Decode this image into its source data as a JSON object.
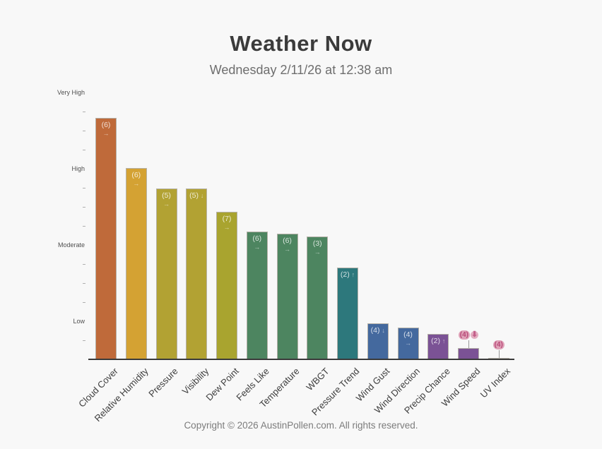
{
  "page": {
    "title": "Weather Now",
    "subtitle": "Wednesday 2/11/26 at 12:38 am",
    "footer": "Copyright © 2026 AustinPollen.com.  All rights reserved."
  },
  "colors": {
    "background": "#f8f8f8",
    "title_text": "#3b3b3b",
    "subtitle_text": "#6e6e6e",
    "footer_text": "#7c7c7c",
    "axis_line": "#3a3a3a",
    "tick": "#b0b0b0",
    "bar_border": "#b5b1a8",
    "bar_label_text": "rgba(255,255,255,0.78)",
    "outside_label_bubble": "#dfa2b8",
    "outside_label_text": "#b84a78",
    "stem": "#999999"
  },
  "chart_data": {
    "type": "bar",
    "title": "Weather Now",
    "subtitle": "Wednesday 2/11/26 at 12:38 am",
    "xlabel": "",
    "ylabel": "",
    "grid": false,
    "legend": "none",
    "y_axis": {
      "kind": "severity-scale",
      "labels": [
        {
          "text": "Very High",
          "value": 7
        },
        {
          "text": "High",
          "value": 5
        },
        {
          "text": "Moderate",
          "value": 3
        },
        {
          "text": "Low",
          "value": 1
        }
      ],
      "minor_tick_values": [
        0.5,
        1.5,
        2,
        2.5,
        3.5,
        4,
        4.5,
        5.5,
        6,
        6.5
      ],
      "range": [
        0,
        7.11
      ]
    },
    "categories": [
      "Cloud Cover",
      "Relative Humidity",
      "Pressure",
      "Visibility",
      "Dew Point",
      "Feels Like",
      "Temperature",
      "WBGT",
      "Pressure Trend",
      "Wind Gust",
      "Wind Direction",
      "Precip Chance",
      "Wind Speed",
      "UV Index"
    ],
    "bars": [
      {
        "category": "Cloud Cover",
        "score": 6,
        "trend": "steady",
        "trend_symbol": "→",
        "value": 6.33,
        "color": "#bf6a3a",
        "label_placement": "inside"
      },
      {
        "category": "Relative Humidity",
        "score": 6,
        "trend": "steady",
        "trend_symbol": "→",
        "value": 5.02,
        "color": "#d4a233",
        "label_placement": "inside"
      },
      {
        "category": "Pressure",
        "score": 5,
        "trend": "steady",
        "trend_symbol": "→",
        "value": 4.48,
        "color": "#b2a233",
        "label_placement": "inside"
      },
      {
        "category": "Visibility",
        "score": 5,
        "trend": "down",
        "trend_symbol": "↓",
        "value": 4.48,
        "color": "#b2a233",
        "label_placement": "inside"
      },
      {
        "category": "Dew Point",
        "score": 7,
        "trend": "steady",
        "trend_symbol": "→",
        "value": 3.87,
        "color": "#a9a42f",
        "label_placement": "inside"
      },
      {
        "category": "Feels Like",
        "score": 6,
        "trend": "steady",
        "trend_symbol": "→",
        "value": 3.35,
        "color": "#4d8560",
        "label_placement": "inside"
      },
      {
        "category": "Temperature",
        "score": 6,
        "trend": "steady",
        "trend_symbol": "→",
        "value": 3.3,
        "color": "#4d8560",
        "label_placement": "inside"
      },
      {
        "category": "WBGT",
        "score": 3,
        "trend": "steady",
        "trend_symbol": "→",
        "value": 3.22,
        "color": "#4d8560",
        "label_placement": "inside"
      },
      {
        "category": "Pressure Trend",
        "score": 2,
        "trend": "up",
        "trend_symbol": "↑",
        "value": 2.41,
        "color": "#2d787c",
        "label_placement": "inside"
      },
      {
        "category": "Wind Gust",
        "score": 4,
        "trend": "down",
        "trend_symbol": "↓",
        "value": 0.94,
        "color": "#44699e",
        "label_placement": "inside"
      },
      {
        "category": "Wind Direction",
        "score": 4,
        "trend": "steady",
        "trend_symbol": "→",
        "value": 0.83,
        "color": "#44699e",
        "label_placement": "inside"
      },
      {
        "category": "Precip Chance",
        "score": 2,
        "trend": "up",
        "trend_symbol": "↑",
        "value": 0.67,
        "color": "#7b5295",
        "label_placement": "inside"
      },
      {
        "category": "Wind Speed",
        "score": 4,
        "trend": "down",
        "trend_symbol": "⬇",
        "value": 0.3,
        "color": "#7b5295",
        "label_placement": "above"
      },
      {
        "category": "UV Index",
        "score": 4,
        "trend": null,
        "trend_symbol": "",
        "value": 0.04,
        "color": "#c9c9c9",
        "label_placement": "above"
      }
    ]
  }
}
